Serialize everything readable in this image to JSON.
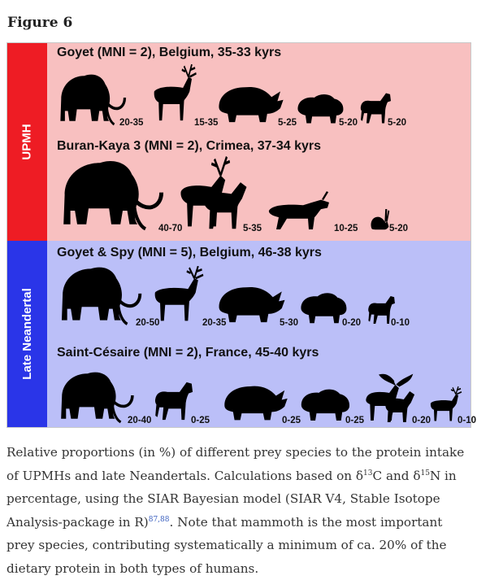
{
  "figure_label": "Figure 6",
  "groups": [
    {
      "label": "UPMH",
      "color": "#ee1c24",
      "background": "#f8c0c0",
      "sites": [
        {
          "title": "Goyet (MNI = 2), Belgium, 35-33 kyrs",
          "prey": [
            {
              "icon": "mammoth-icon",
              "range": "20-35"
            },
            {
              "icon": "reindeer-icon",
              "range": "15-35"
            },
            {
              "icon": "rhinoceros-icon",
              "range": "5-25"
            },
            {
              "icon": "bison-icon",
              "range": "5-20"
            },
            {
              "icon": "horse-icon",
              "range": "5-20"
            }
          ]
        },
        {
          "title": "Buran-Kaya 3 (MNI = 2), Crimea, 37-34 kyrs",
          "prey": [
            {
              "icon": "mammoth-icon",
              "range": "40-70"
            },
            {
              "icon": "deer-and-horse-icon",
              "range": "5-35"
            },
            {
              "icon": "saiga-antelope-icon",
              "range": "10-25"
            },
            {
              "icon": "hare-icon",
              "range": "5-20"
            }
          ]
        }
      ]
    },
    {
      "label": "Late Neandertal",
      "color": "#2a35e8",
      "background": "#bbbff8",
      "sites": [
        {
          "title": "Goyet & Spy (MNI = 5), Belgium, 46-38 kyrs",
          "prey": [
            {
              "icon": "mammoth-icon",
              "range": "20-50"
            },
            {
              "icon": "reindeer-icon",
              "range": "20-35"
            },
            {
              "icon": "rhinoceros-icon",
              "range": "5-30"
            },
            {
              "icon": "bison-icon",
              "range": "0-20"
            },
            {
              "icon": "horse-icon",
              "range": "0-10"
            }
          ]
        },
        {
          "title": "Saint-Césaire (MNI = 2), France, 45-40 kyrs",
          "prey": [
            {
              "icon": "mammoth-icon",
              "range": "20-40"
            },
            {
              "icon": "horse-icon",
              "range": "0-25"
            },
            {
              "icon": "rhinoceros-icon",
              "range": "0-25"
            },
            {
              "icon": "bison-icon",
              "range": "0-25"
            },
            {
              "icon": "giant-deer-and-horse-icon",
              "range": "0-20"
            },
            {
              "icon": "reindeer-icon",
              "range": "0-10"
            }
          ]
        }
      ]
    }
  ],
  "caption": {
    "part1": "Relative proportions (in %) of different prey species to the protein intake of UPMHs and late Neandertals. Calculations based on δ",
    "sup1": "13",
    "part2": "C and δ",
    "sup2": "15",
    "part3": "N in percentage, using the SIAR Bayesian model (SIAR V4, Stable Isotope Analysis-package in R)",
    "refs": "87,88",
    "part4": ". Note that mammoth is the most important prey species, contributing systematically a minimum of ca. 20% of the dietary protein in both types of humans."
  }
}
